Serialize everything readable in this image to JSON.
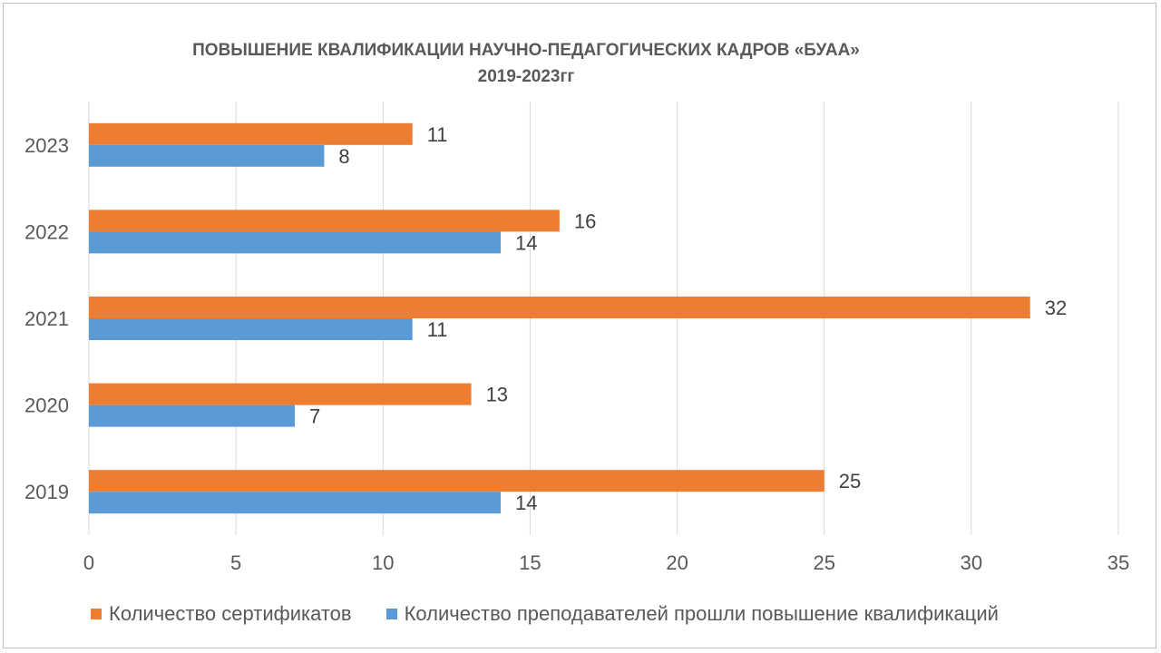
{
  "chart_data": {
    "type": "bar",
    "orientation": "horizontal",
    "title_line1": "ПОВЫШЕНИЕ  КВАЛИФИКАЦИИ НАУЧНО-ПЕДАГОГИЧЕСКИХ КАДРОВ «БУАА»",
    "title_line2": "2019-2023гг",
    "categories": [
      "2019",
      "2020",
      "2021",
      "2022",
      "2023"
    ],
    "series": [
      {
        "name": "Количество преподавателей прошли повышение квалификаций",
        "color": "#5b9bd5",
        "values": [
          14,
          7,
          11,
          14,
          8
        ]
      },
      {
        "name": "Количество сертификатов",
        "color": "#ed7d31",
        "values": [
          25,
          13,
          32,
          16,
          11
        ]
      }
    ],
    "xlim": [
      0,
      35
    ],
    "x_ticks": [
      "0",
      "5",
      "10",
      "15",
      "20",
      "25",
      "30",
      "35"
    ],
    "grid": true,
    "legend_position": "bottom",
    "data_labels": true
  }
}
